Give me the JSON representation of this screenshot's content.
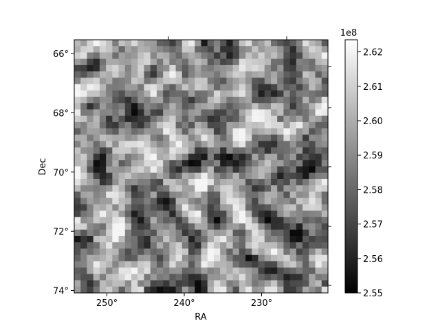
{
  "chart_data": {
    "type": "heatmap",
    "colormap": "gray",
    "x_axis": {
      "label": "RA",
      "ticks": [
        "250°",
        "240°",
        "230°"
      ],
      "tick_values": [
        250,
        240,
        230
      ],
      "direction": "decreasing"
    },
    "y_axis": {
      "label": "Dec",
      "ticks": [
        "66°",
        "68°",
        "70°",
        "72°",
        "74°"
      ],
      "tick_values": [
        66,
        68,
        70,
        72,
        74
      ],
      "direction": "increasing-downward"
    },
    "colorbar": {
      "offset_label": "1e8",
      "ticks": [
        "2.55",
        "2.56",
        "2.57",
        "2.58",
        "2.59",
        "2.60",
        "2.61",
        "2.62"
      ],
      "tick_values": [
        2.55,
        2.56,
        2.57,
        2.58,
        2.59,
        2.6,
        2.61,
        2.62
      ],
      "range": [
        2.55,
        2.6235
      ]
    },
    "grid": false
  }
}
